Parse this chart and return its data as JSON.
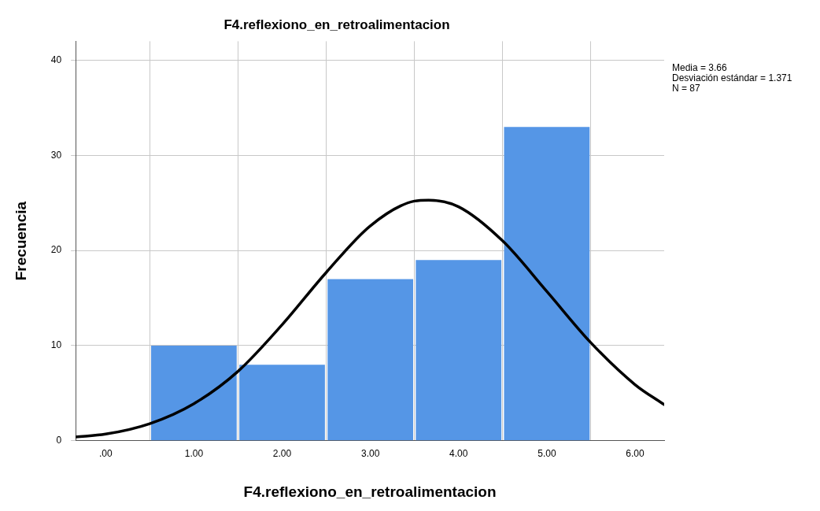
{
  "chart_data": {
    "type": "histogram",
    "title": "F4.reflexiono_en_retroalimentacion",
    "xlabel": "F4.reflexiono_en_retroalimentacion",
    "ylabel": "Frecuencia",
    "bins": [
      0.5,
      1.5,
      2.5,
      3.5,
      4.5,
      5.5
    ],
    "values": [
      10,
      8,
      17,
      19,
      33
    ],
    "color": "#5596e6",
    "series": [
      {
        "type": "line",
        "color": "#000000",
        "x": [
          -0.34,
          0,
          0.5,
          1,
          1.5,
          2,
          2.5,
          3,
          3.5,
          3.66,
          4,
          4.5,
          5,
          5.5,
          6,
          6.33
        ],
        "values": [
          0.4,
          0.7,
          1.8,
          3.9,
          7.3,
          12.2,
          17.7,
          22.6,
          25.2,
          25.3,
          24.6,
          21.0,
          15.7,
          10.3,
          5.9,
          3.8
        ]
      }
    ],
    "xlim": [
      -0.34,
      6.33
    ],
    "xticks": [
      {
        "value": 0,
        "label": ".00"
      },
      {
        "value": 1,
        "label": "1.00"
      },
      {
        "value": 2,
        "label": "2.00"
      },
      {
        "value": 3,
        "label": "3.00"
      },
      {
        "value": 4,
        "label": "4.00"
      },
      {
        "value": 5,
        "label": "5.00"
      },
      {
        "value": 6,
        "label": "6.00"
      }
    ],
    "ylim": [
      0,
      42
    ],
    "yticks": [
      0,
      10,
      20,
      30,
      40
    ],
    "grid": true,
    "legend": false,
    "marker": "none",
    "annotations": [
      "Media = 3.66",
      "Desviación estándar = 1.371",
      "N = 87"
    ]
  }
}
